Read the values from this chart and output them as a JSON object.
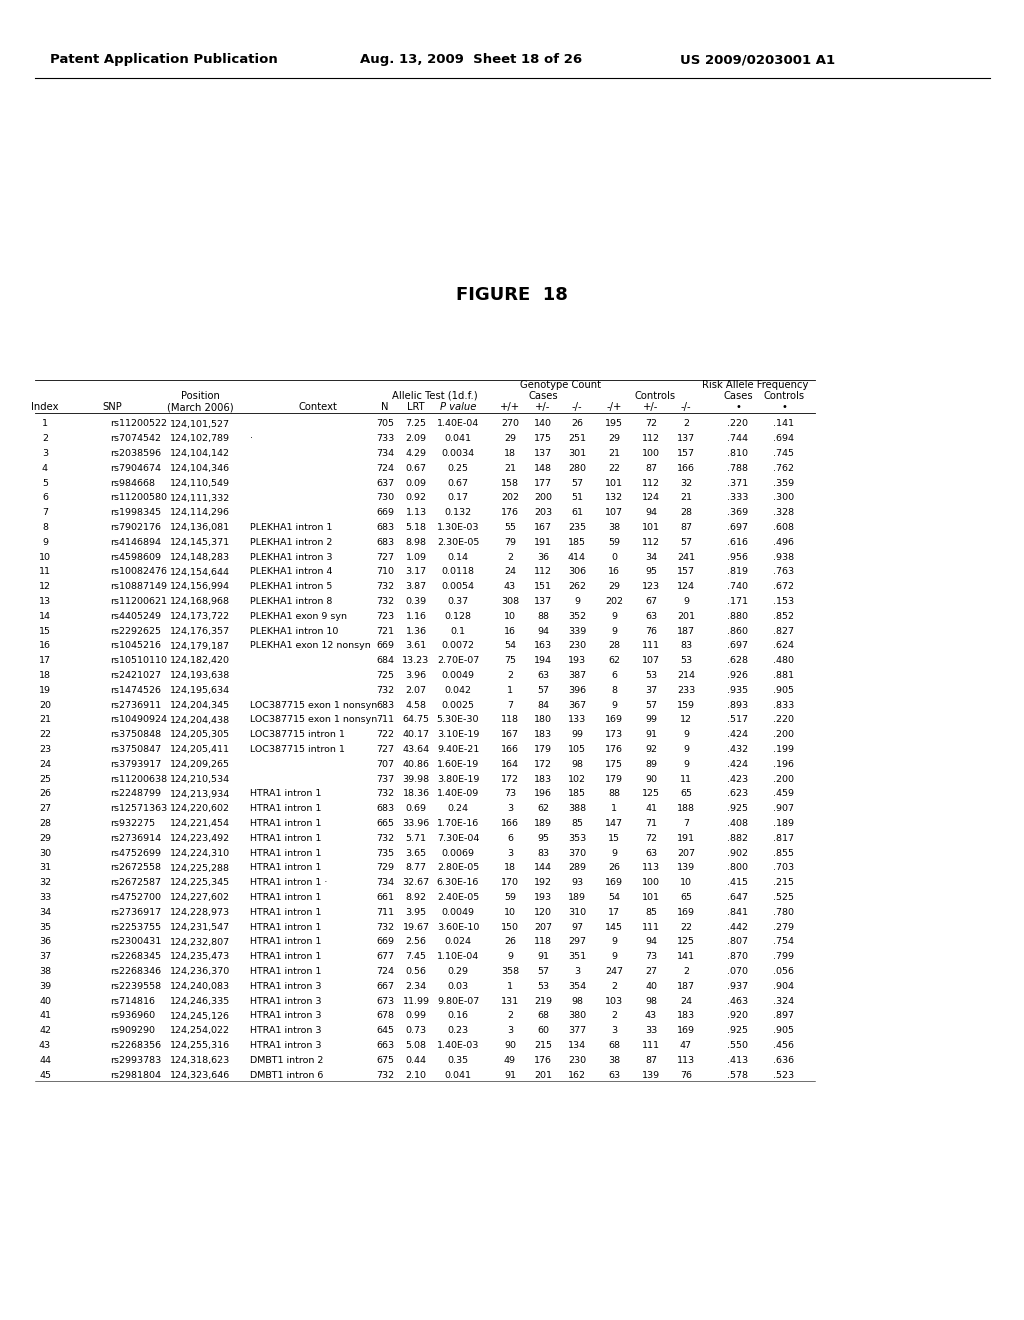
{
  "header_left": "Patent Application Publication",
  "header_mid": "Aug. 13, 2009  Sheet 18 of 26",
  "header_right": "US 2009/0203001 A1",
  "figure_title": "FIGURE  18",
  "table_data": [
    [
      "1",
      "rs11200522",
      "124,101,527",
      "",
      "705",
      "7.25",
      "1.40E-04",
      "270",
      "140",
      "26",
      "195",
      "72",
      "2",
      ".220",
      ".141"
    ],
    [
      "2",
      "rs7074542",
      "124,102,789",
      "·",
      "733",
      "2.09",
      "0.041",
      "29",
      "175",
      "251",
      "29",
      "112",
      "137",
      ".744",
      ".694"
    ],
    [
      "3",
      "rs2038596",
      "124,104,142",
      "",
      "734",
      "4.29",
      "0.0034",
      "18",
      "137",
      "301",
      "21",
      "100",
      "157",
      ".810",
      ".745"
    ],
    [
      "4",
      "rs7904674",
      "124,104,346",
      "",
      "724",
      "0.67",
      "0.25",
      "21",
      "148",
      "280",
      "22",
      "87",
      "166",
      ".788",
      ".762"
    ],
    [
      "5",
      "rs984668",
      "124,110,549",
      "",
      "637",
      "0.09",
      "0.67",
      "158",
      "177",
      "57",
      "101",
      "112",
      "32",
      ".371",
      ".359"
    ],
    [
      "6",
      "rs11200580",
      "124,111,332",
      "",
      "730",
      "0.92",
      "0.17",
      "202",
      "200",
      "51",
      "132",
      "124",
      "21",
      ".333",
      ".300"
    ],
    [
      "7",
      "rs1998345",
      "124,114,296",
      "",
      "669",
      "1.13",
      "0.132",
      "176",
      "203",
      "61",
      "107",
      "94",
      "28",
      ".369",
      ".328"
    ],
    [
      "8",
      "rs7902176",
      "124,136,081",
      "PLEKHA1 intron 1",
      "683",
      "5.18",
      "1.30E-03",
      "55",
      "167",
      "235",
      "38",
      "101",
      "87",
      ".697",
      ".608"
    ],
    [
      "9",
      "rs4146894",
      "124,145,371",
      "PLEKHA1 intron 2",
      "683",
      "8.98",
      "2.30E-05",
      "79",
      "191",
      "185",
      "59",
      "112",
      "57",
      ".616",
      ".496"
    ],
    [
      "10",
      "rs4598609",
      "124,148,283",
      "PLEKHA1 intron 3",
      "727",
      "1.09",
      "0.14",
      "2",
      "36",
      "414",
      "0",
      "34",
      "241",
      ".956",
      ".938"
    ],
    [
      "11",
      "rs10082476",
      "124,154,644",
      "PLEKHA1 intron 4",
      "710",
      "3.17",
      "0.0118",
      "24",
      "112",
      "306",
      "16",
      "95",
      "157",
      ".819",
      ".763"
    ],
    [
      "12",
      "rs10887149",
      "124,156,994",
      "PLEKHA1 intron 5",
      "732",
      "3.87",
      "0.0054",
      "43",
      "151",
      "262",
      "29",
      "123",
      "124",
      ".740",
      ".672"
    ],
    [
      "13",
      "rs11200621",
      "124,168,968",
      "PLEKHA1 intron 8",
      "732",
      "0.39",
      "0.37",
      "308",
      "137",
      "9",
      "202",
      "67",
      "9",
      ".171",
      ".153"
    ],
    [
      "14",
      "rs4405249",
      "124,173,722",
      "PLEKHA1 exon 9 syn",
      "723",
      "1.16",
      "0.128",
      "10",
      "88",
      "352",
      "9",
      "63",
      "201",
      ".880",
      ".852"
    ],
    [
      "15",
      "rs2292625",
      "124,176,357",
      "PLEKHA1 intron 10",
      "721",
      "1.36",
      "0.1",
      "16",
      "94",
      "339",
      "9",
      "76",
      "187",
      ".860",
      ".827"
    ],
    [
      "16",
      "rs1045216",
      "124,179,187",
      "PLEKHA1 exon 12 nonsyn",
      "669",
      "3.61",
      "0.0072",
      "54",
      "163",
      "230",
      "28",
      "111",
      "83",
      ".697",
      ".624"
    ],
    [
      "17",
      "rs10510110",
      "124,182,420",
      "",
      "684",
      "13.23",
      "2.70E-07",
      "75",
      "194",
      "193",
      "62",
      "107",
      "53",
      ".628",
      ".480"
    ],
    [
      "18",
      "rs2421027",
      "124,193,638",
      "",
      "725",
      "3.96",
      "0.0049",
      "2",
      "63",
      "387",
      "6",
      "53",
      "214",
      ".926",
      ".881"
    ],
    [
      "19",
      "rs1474526",
      "124,195,634",
      "",
      "732",
      "2.07",
      "0.042",
      "1",
      "57",
      "396",
      "8",
      "37",
      "233",
      ".935",
      ".905"
    ],
    [
      "20",
      "rs2736911",
      "124,204,345",
      "LOC387715 exon 1 nonsyn",
      "683",
      "4.58",
      "0.0025",
      "7",
      "84",
      "367",
      "9",
      "57",
      "159",
      ".893",
      ".833"
    ],
    [
      "21",
      "rs10490924",
      "124,204,438",
      "LOC387715 exon 1 nonsyn",
      "711",
      "64.75",
      "5.30E-30",
      "118",
      "180",
      "133",
      "169",
      "99",
      "12",
      ".517",
      ".220"
    ],
    [
      "22",
      "rs3750848",
      "124,205,305",
      "LOC387715 intron 1",
      "722",
      "40.17",
      "3.10E-19",
      "167",
      "183",
      "99",
      "173",
      "91",
      "9",
      ".424",
      ".200"
    ],
    [
      "23",
      "rs3750847",
      "124,205,411",
      "LOC387715 intron 1",
      "727",
      "43.64",
      "9.40E-21",
      "166",
      "179",
      "105",
      "176",
      "92",
      "9",
      ".432",
      ".199"
    ],
    [
      "24",
      "rs3793917",
      "124,209,265",
      "",
      "707",
      "40.86",
      "1.60E-19",
      "164",
      "172",
      "98",
      "175",
      "89",
      "9",
      ".424",
      ".196"
    ],
    [
      "25",
      "rs11200638",
      "124,210,534",
      "",
      "737",
      "39.98",
      "3.80E-19",
      "172",
      "183",
      "102",
      "179",
      "90",
      "11",
      ".423",
      ".200"
    ],
    [
      "26",
      "rs2248799",
      "124,213,934",
      "HTRA1 intron 1",
      "732",
      "18.36",
      "1.40E-09",
      "73",
      "196",
      "185",
      "88",
      "125",
      "65",
      ".623",
      ".459"
    ],
    [
      "27",
      "rs12571363",
      "124,220,602",
      "HTRA1 intron 1",
      "683",
      "0.69",
      "0.24",
      "3",
      "62",
      "388",
      "1",
      "41",
      "188",
      ".925",
      ".907"
    ],
    [
      "28",
      "rs932275",
      "124,221,454",
      "HTRA1 intron 1",
      "665",
      "33.96",
      "1.70E-16",
      "166",
      "189",
      "85",
      "147",
      "71",
      "7",
      ".408",
      ".189"
    ],
    [
      "29",
      "rs2736914",
      "124,223,492",
      "HTRA1 intron 1",
      "732",
      "5.71",
      "7.30E-04",
      "6",
      "95",
      "353",
      "15",
      "72",
      "191",
      ".882",
      ".817"
    ],
    [
      "30",
      "rs4752699",
      "124,224,310",
      "HTRA1 intron 1",
      "735",
      "3.65",
      "0.0069",
      "3",
      "83",
      "370",
      "9",
      "63",
      "207",
      ".902",
      ".855"
    ],
    [
      "31",
      "rs2672558",
      "124,225,288",
      "HTRA1 intron 1",
      "729",
      "8.77",
      "2.80E-05",
      "18",
      "144",
      "289",
      "26",
      "113",
      "139",
      ".800",
      ".703"
    ],
    [
      "32",
      "rs2672587",
      "124,225,345",
      "HTRA1 intron 1 ·",
      "734",
      "32.67",
      "6.30E-16",
      "170",
      "192",
      "93",
      "169",
      "100",
      "10",
      ".415",
      ".215"
    ],
    [
      "33",
      "rs4752700",
      "124,227,602",
      "HTRA1 intron 1",
      "661",
      "8.92",
      "2.40E-05",
      "59",
      "193",
      "189",
      "54",
      "101",
      "65",
      ".647",
      ".525"
    ],
    [
      "34",
      "rs2736917",
      "124,228,973",
      "HTRA1 intron 1",
      "711",
      "3.95",
      "0.0049",
      "10",
      "120",
      "310",
      "17",
      "85",
      "169",
      ".841",
      ".780"
    ],
    [
      "35",
      "rs2253755",
      "124,231,547",
      "HTRA1 intron 1",
      "732",
      "19.67",
      "3.60E-10",
      "150",
      "207",
      "97",
      "145",
      "111",
      "22",
      ".442",
      ".279"
    ],
    [
      "36",
      "rs2300431",
      "124,232,807",
      "HTRA1 intron 1",
      "669",
      "2.56",
      "0.024",
      "26",
      "118",
      "297",
      "9",
      "94",
      "125",
      ".807",
      ".754"
    ],
    [
      "37",
      "rs2268345",
      "124,235,473",
      "HTRA1 intron 1",
      "677",
      "7.45",
      "1.10E-04",
      "9",
      "91",
      "351",
      "9",
      "73",
      "141",
      ".870",
      ".799"
    ],
    [
      "38",
      "rs2268346",
      "124,236,370",
      "HTRA1 intron 1",
      "724",
      "0.56",
      "0.29",
      "358",
      "57",
      "3",
      "247",
      "27",
      "2",
      ".070",
      ".056"
    ],
    [
      "39",
      "rs2239558",
      "124,240,083",
      "HTRA1 intron 3",
      "667",
      "2.34",
      "0.03",
      "1",
      "53",
      "354",
      "2",
      "40",
      "187",
      ".937",
      ".904"
    ],
    [
      "40",
      "rs714816",
      "124,246,335",
      "HTRA1 intron 3",
      "673",
      "11.99",
      "9.80E-07",
      "131",
      "219",
      "98",
      "103",
      "98",
      "24",
      ".463",
      ".324"
    ],
    [
      "41",
      "rs936960",
      "124,245,126",
      "HTRA1 intron 3",
      "678",
      "0.99",
      "0.16",
      "2",
      "68",
      "380",
      "2",
      "43",
      "183",
      ".920",
      ".897"
    ],
    [
      "42",
      "rs909290",
      "124,254,022",
      "HTRA1 intron 3",
      "645",
      "0.73",
      "0.23",
      "3",
      "60",
      "377",
      "3",
      "33",
      "169",
      ".925",
      ".905"
    ],
    [
      "43",
      "rs2268356",
      "124,255,316",
      "HTRA1 intron 3",
      "663",
      "5.08",
      "1.40E-03",
      "90",
      "215",
      "134",
      "68",
      "111",
      "47",
      ".550",
      ".456"
    ],
    [
      "44",
      "rs2993783",
      "124,318,623",
      "DMBT1 intron 2",
      "675",
      "0.44",
      "0.35",
      "49",
      "176",
      "230",
      "38",
      "87",
      "113",
      ".413",
      ".636"
    ],
    [
      "45",
      "rs2981804",
      "124,323,646",
      "DMBT1 intron 6",
      "732",
      "2.10",
      "0.041",
      "91",
      "201",
      "162",
      "63",
      "139",
      "76",
      ".578",
      ".523"
    ]
  ]
}
